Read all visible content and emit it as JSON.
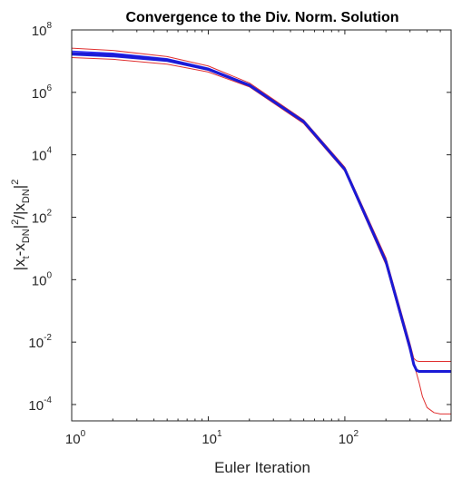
{
  "chart_data": {
    "type": "line",
    "title": "Convergence to the Div. Norm. Solution",
    "xlabel": "Euler Iteration",
    "ylabel": "|x_t-x_DN|^2/|x_DN|^2",
    "xscale": "log",
    "yscale": "log",
    "xlim": [
      1,
      600
    ],
    "ylim": [
      3e-05,
      100000000
    ],
    "x_ticks": [
      {
        "base": "10",
        "exp": "0",
        "value": 1
      },
      {
        "base": "10",
        "exp": "1",
        "value": 10
      },
      {
        "base": "10",
        "exp": "2",
        "value": 100
      }
    ],
    "y_ticks": [
      {
        "base": "10",
        "exp": "-4",
        "value": 0.0001
      },
      {
        "base": "10",
        "exp": "-2",
        "value": 0.01
      },
      {
        "base": "10",
        "exp": "0",
        "value": 1
      },
      {
        "base": "10",
        "exp": "2",
        "value": 100
      },
      {
        "base": "10",
        "exp": "4",
        "value": 10000
      },
      {
        "base": "10",
        "exp": "6",
        "value": 1000000
      },
      {
        "base": "10",
        "exp": "8",
        "value": 100000000
      }
    ],
    "grid": false,
    "legend": "none",
    "series": [
      {
        "color": "#e03030",
        "width": 1,
        "x": [
          1,
          2,
          5,
          10,
          20,
          50,
          100,
          200,
          300,
          320,
          335,
          350,
          400,
          500,
          600
        ],
        "y": [
          26000000,
          22000000,
          14000000,
          7000000,
          2000000,
          130000,
          4000,
          5,
          0.009,
          0.003,
          0.0025,
          0.0024,
          0.0024,
          0.0024,
          0.0024
        ]
      },
      {
        "color": "#e03030",
        "width": 1,
        "x": [
          1,
          2,
          5,
          10,
          20,
          50,
          100,
          200,
          300,
          320,
          335,
          350,
          370,
          400,
          450,
          500,
          600
        ],
        "y": [
          13000000,
          11500000,
          8000000,
          4500000,
          1500000,
          100000,
          3000,
          3,
          0.005,
          0.002,
          0.001,
          0.0005,
          0.00018,
          8e-05,
          5.5e-05,
          5e-05,
          5e-05
        ]
      },
      {
        "color": "#3333ff",
        "width": 1.2,
        "x": [
          1,
          2,
          5,
          10,
          20,
          50,
          100,
          200,
          300,
          320,
          335,
          350,
          400,
          500,
          600
        ],
        "y": [
          21000000,
          18000000,
          12000000,
          6000000,
          1800000,
          120000,
          3600,
          4,
          0.007,
          0.002,
          0.0013,
          0.0012,
          0.0012,
          0.0012,
          0.0012
        ]
      },
      {
        "color": "#2020dd",
        "width": 1.6,
        "x": [
          1,
          2,
          5,
          10,
          20,
          50,
          100,
          200,
          300,
          320,
          335,
          350,
          400,
          500,
          600
        ],
        "y": [
          16000000,
          14000000,
          10000000,
          5200000,
          1600000,
          110000,
          3300,
          3.5,
          0.006,
          0.0018,
          0.0012,
          0.0011,
          0.0011,
          0.0011,
          0.0011
        ]
      },
      {
        "color": "#1a1ad6",
        "width": 3,
        "x": [
          1,
          2,
          5,
          10,
          20,
          50,
          100,
          200,
          300,
          320,
          335,
          350,
          400,
          500,
          600
        ],
        "y": [
          18000000,
          16000000,
          11000000,
          5500000,
          1700000,
          115000,
          3400,
          3.8,
          0.0065,
          0.0019,
          0.00125,
          0.00115,
          0.00115,
          0.00115,
          0.00115
        ]
      }
    ]
  }
}
